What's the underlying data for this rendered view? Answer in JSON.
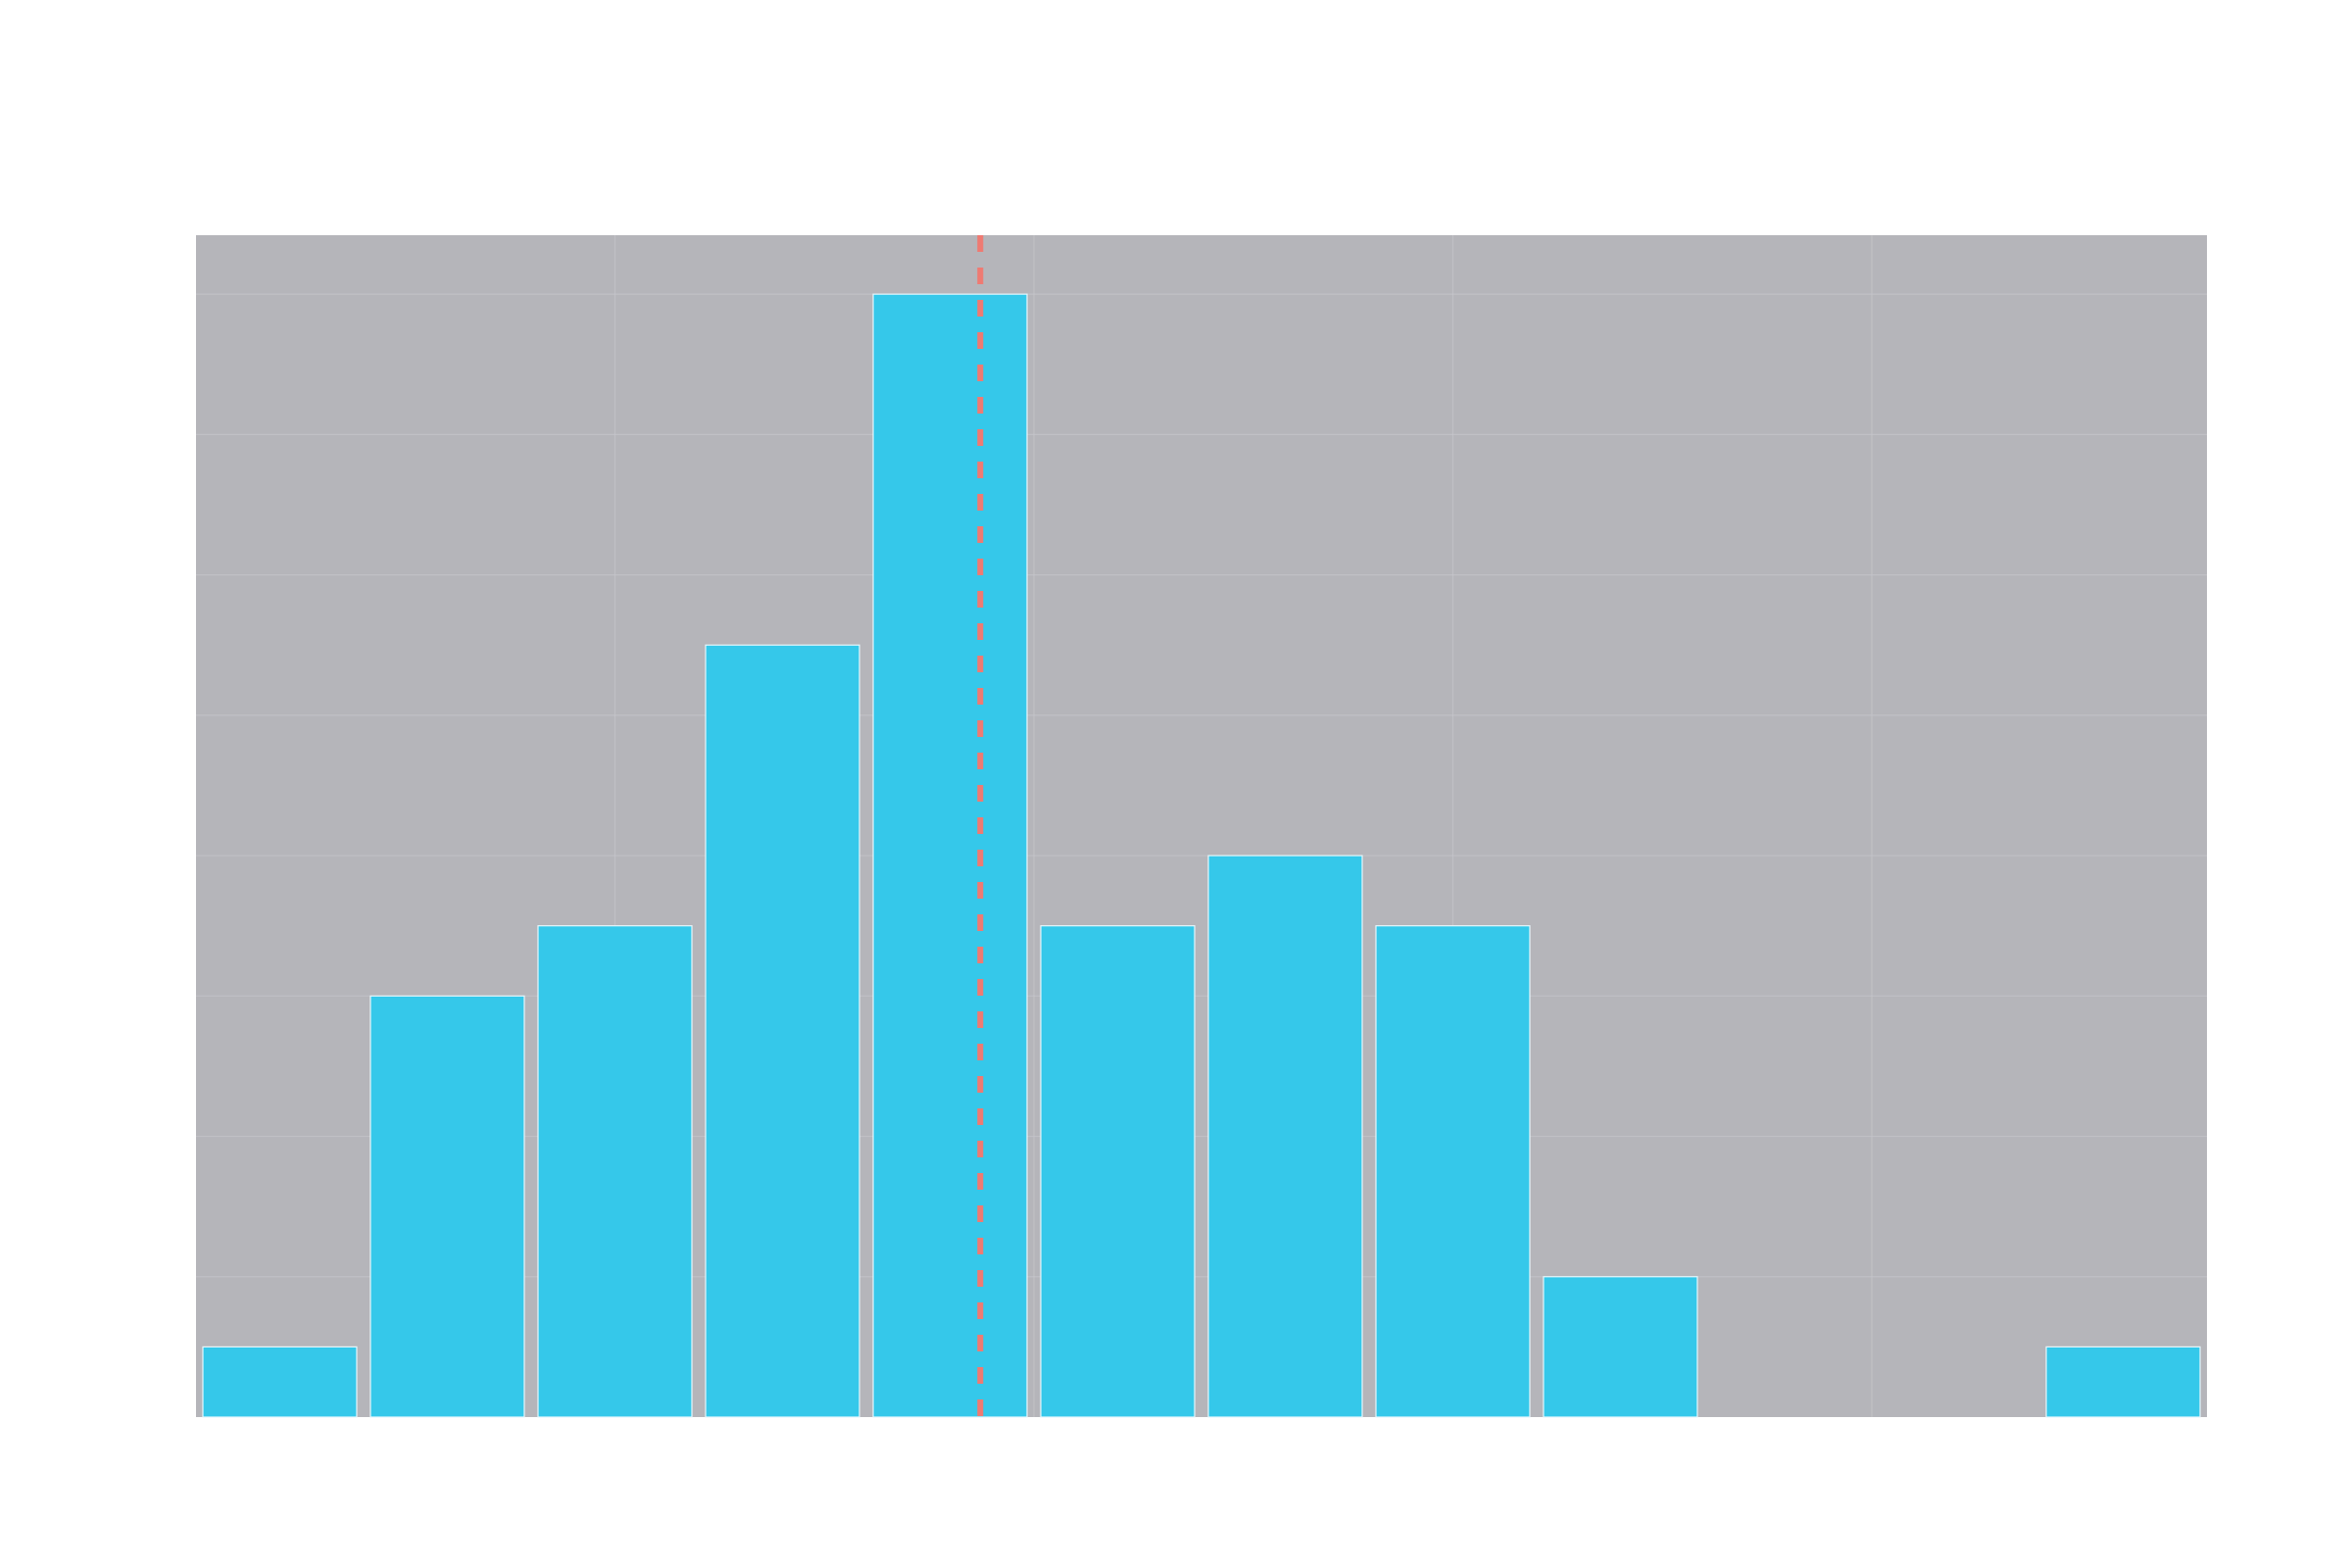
{
  "chart_data": {
    "type": "bar",
    "title": "",
    "xlabel": "",
    "ylabel": "",
    "bins": [
      {
        "start": 0,
        "end": 1,
        "count": 1
      },
      {
        "start": 1,
        "end": 2,
        "count": 6
      },
      {
        "start": 2,
        "end": 3,
        "count": 7
      },
      {
        "start": 3,
        "end": 4,
        "count": 11
      },
      {
        "start": 4,
        "end": 5,
        "count": 16
      },
      {
        "start": 5,
        "end": 6,
        "count": 7
      },
      {
        "start": 6,
        "end": 7,
        "count": 8
      },
      {
        "start": 7,
        "end": 8,
        "count": 7
      },
      {
        "start": 8,
        "end": 9,
        "count": 2
      },
      {
        "start": 9,
        "end": 10,
        "count": 0
      },
      {
        "start": 10,
        "end": 11,
        "count": 0
      },
      {
        "start": 11,
        "end": 12,
        "count": 1
      }
    ],
    "xlim": [
      0,
      12
    ],
    "ylim": [
      0,
      16.84
    ],
    "reference_line": {
      "x": 4.68,
      "style": "dashed"
    },
    "grid": true,
    "x_gridlines": [
      2.5,
      5,
      7.5,
      10
    ],
    "y_gridlines": [
      2,
      4,
      6,
      8,
      10,
      12,
      14,
      16
    ]
  },
  "colors": {
    "plot_background": "#b5b5ba",
    "bar_fill": "#35c8ea",
    "reference_line": "#ef7a72",
    "grid": "#c9c9cf"
  }
}
